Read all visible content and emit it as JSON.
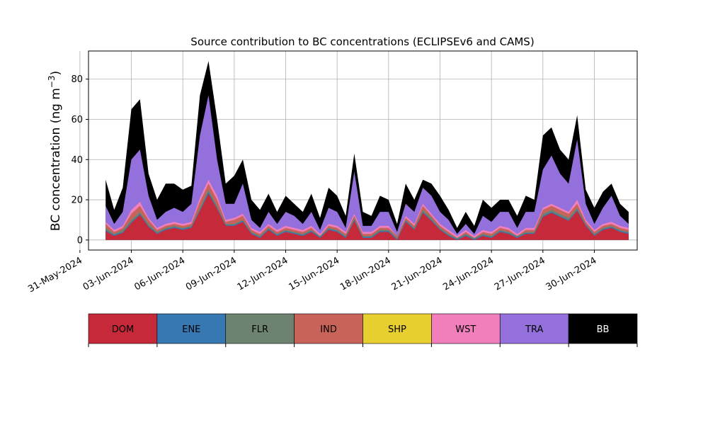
{
  "chart_data": {
    "type": "area",
    "stacked": true,
    "title": "Source contribution to BC concentrations (ECLIPSEv6 and CAMS)",
    "ylabel": "BC concentration (ng m",
    "ylabel_sup": "−3",
    "ylabel_close": ")",
    "xlabel": "",
    "grid": true,
    "xlim": [
      "2024-05-31T12:00",
      "2024-07-02T12:00"
    ],
    "ylim": [
      -5,
      94
    ],
    "y_ticks": [
      0,
      20,
      40,
      60,
      80
    ],
    "x_ticks": [
      {
        "date": "2024-05-31",
        "label": "31-May-2024"
      },
      {
        "date": "2024-06-03",
        "label": "03-Jun-2024"
      },
      {
        "date": "2024-06-06",
        "label": "06-Jun-2024"
      },
      {
        "date": "2024-06-09",
        "label": "09-Jun-2024"
      },
      {
        "date": "2024-06-12",
        "label": "12-Jun-2024"
      },
      {
        "date": "2024-06-15",
        "label": "15-Jun-2024"
      },
      {
        "date": "2024-06-18",
        "label": "18-Jun-2024"
      },
      {
        "date": "2024-06-21",
        "label": "21-Jun-2024"
      },
      {
        "date": "2024-06-24",
        "label": "24-Jun-2024"
      },
      {
        "date": "2024-06-27",
        "label": "27-Jun-2024"
      },
      {
        "date": "2024-06-30",
        "label": "30-Jun-2024"
      }
    ],
    "legend_position": "below",
    "series": [
      {
        "name": "DOM",
        "color": "#c62a3a"
      },
      {
        "name": "ENE",
        "color": "#3778b2"
      },
      {
        "name": "FLR",
        "color": "#6e8270"
      },
      {
        "name": "IND",
        "color": "#c8635a"
      },
      {
        "name": "SHP",
        "color": "#e8cf30"
      },
      {
        "name": "WST",
        "color": "#f17fbc"
      },
      {
        "name": "TRA",
        "color": "#9370db"
      },
      {
        "name": "BB",
        "color": "#000000"
      }
    ],
    "time": [
      "2024-06-01T12:00",
      "2024-06-02T00:00",
      "2024-06-02T12:00",
      "2024-06-03T00:00",
      "2024-06-03T12:00",
      "2024-06-04T00:00",
      "2024-06-04T12:00",
      "2024-06-05T00:00",
      "2024-06-05T12:00",
      "2024-06-06T00:00",
      "2024-06-06T12:00",
      "2024-06-07T00:00",
      "2024-06-07T12:00",
      "2024-06-08T00:00",
      "2024-06-08T12:00",
      "2024-06-09T00:00",
      "2024-06-09T12:00",
      "2024-06-10T00:00",
      "2024-06-10T12:00",
      "2024-06-11T00:00",
      "2024-06-11T12:00",
      "2024-06-12T00:00",
      "2024-06-12T12:00",
      "2024-06-13T00:00",
      "2024-06-13T12:00",
      "2024-06-14T00:00",
      "2024-06-14T12:00",
      "2024-06-15T00:00",
      "2024-06-15T12:00",
      "2024-06-16T00:00",
      "2024-06-16T12:00",
      "2024-06-17T00:00",
      "2024-06-17T12:00",
      "2024-06-18T00:00",
      "2024-06-18T12:00",
      "2024-06-19T00:00",
      "2024-06-19T12:00",
      "2024-06-20T00:00",
      "2024-06-20T12:00",
      "2024-06-21T00:00",
      "2024-06-21T12:00",
      "2024-06-22T00:00",
      "2024-06-22T12:00",
      "2024-06-23T00:00",
      "2024-06-23T12:00",
      "2024-06-24T00:00",
      "2024-06-24T12:00",
      "2024-06-25T00:00",
      "2024-06-25T12:00",
      "2024-06-26T00:00",
      "2024-06-26T12:00",
      "2024-06-27T00:00",
      "2024-06-27T12:00",
      "2024-06-28T00:00",
      "2024-06-28T12:00",
      "2024-06-29T00:00",
      "2024-06-29T12:00",
      "2024-06-30T00:00",
      "2024-06-30T12:00",
      "2024-07-01T00:00",
      "2024-07-01T12:00",
      "2024-07-02T00:00"
    ],
    "total_BB": [
      30,
      15,
      26,
      65,
      70,
      33,
      20,
      28,
      28,
      25,
      27,
      72,
      89,
      60,
      28,
      32,
      40,
      20,
      15,
      23,
      14,
      22,
      18,
      14,
      23,
      11,
      26,
      22,
      12,
      43,
      14,
      12,
      22,
      20,
      8,
      28,
      20,
      30,
      28,
      22,
      15,
      6,
      14,
      7,
      20,
      16,
      20,
      20,
      12,
      22,
      20,
      52,
      56,
      45,
      40,
      62,
      25,
      16,
      24,
      28,
      18,
      14
    ],
    "top_TRA": [
      17,
      8,
      14,
      40,
      45,
      22,
      10,
      14,
      16,
      14,
      18,
      52,
      72,
      40,
      18,
      18,
      28,
      10,
      6,
      14,
      8,
      14,
      12,
      8,
      14,
      5,
      16,
      14,
      6,
      34,
      7,
      7,
      14,
      14,
      4,
      18,
      14,
      26,
      22,
      14,
      10,
      3,
      8,
      3,
      12,
      9,
      14,
      14,
      6,
      14,
      14,
      35,
      42,
      33,
      28,
      50,
      18,
      8,
      16,
      22,
      12,
      8
    ],
    "top_WST": [
      9,
      5,
      7,
      15,
      19,
      11,
      6,
      8,
      9,
      8,
      9,
      21,
      30,
      22,
      10,
      11,
      13,
      6,
      4,
      8,
      5,
      7,
      6,
      5,
      7,
      3,
      8,
      7,
      4,
      13,
      4,
      4,
      7,
      7,
      2,
      12,
      8,
      18,
      13,
      8,
      5,
      2,
      5,
      2,
      5,
      4,
      7,
      6,
      3,
      6,
      6,
      16,
      18,
      16,
      14,
      20,
      10,
      5,
      8,
      9,
      7,
      6
    ],
    "top_IND": [
      8,
      4,
      6,
      13,
      17,
      10,
      5,
      7,
      8,
      7,
      8,
      19,
      28,
      20,
      9,
      10,
      12,
      5,
      3,
      7,
      4,
      6,
      5,
      4,
      6,
      2,
      7,
      6,
      3,
      12,
      3,
      3,
      6,
      6,
      2,
      11,
      7,
      17,
      12,
      7,
      4,
      1,
      4,
      1,
      4,
      3,
      6,
      5,
      2,
      5,
      5,
      15,
      17,
      15,
      13,
      18,
      9,
      4,
      7,
      8,
      6,
      5
    ],
    "top_FLR": [
      6,
      3,
      5,
      10,
      14,
      8,
      4,
      6,
      7,
      6,
      7,
      16,
      25,
      17,
      8,
      8,
      10,
      4,
      2,
      6,
      3,
      5,
      4,
      3,
      5,
      2,
      6,
      5,
      2,
      11,
      2,
      2,
      5,
      5,
      1,
      10,
      6,
      15,
      11,
      6,
      3,
      1,
      3,
      1,
      3,
      2,
      5,
      4,
      2,
      4,
      4,
      13,
      15,
      13,
      11,
      16,
      8,
      3,
      6,
      7,
      5,
      4
    ],
    "top_ENE": [
      5,
      2.5,
      4,
      9,
      13,
      7,
      3.5,
      5.5,
      6.5,
      5.5,
      6.5,
      15,
      24,
      16,
      7.5,
      7.5,
      9.5,
      3.5,
      1.5,
      5.5,
      2.5,
      4.5,
      3.5,
      2.5,
      4.5,
      1.5,
      5.5,
      4.5,
      1.5,
      10,
      1.5,
      1.5,
      4.5,
      4.5,
      0.5,
      9.5,
      5.5,
      14,
      10,
      5.5,
      2.5,
      0.5,
      2.5,
      0.5,
      2.5,
      1.5,
      4.5,
      3.5,
      1.5,
      3.5,
      3.5,
      12,
      14,
      12,
      10,
      15,
      7.5,
      2.5,
      5.5,
      6.5,
      4.5,
      3.5
    ],
    "top_DOM": [
      4.5,
      2,
      3.5,
      8.5,
      12.5,
      6.5,
      3,
      5,
      6,
      5,
      6,
      14.5,
      23,
      15.5,
      7,
      7,
      9,
      3,
      1,
      5,
      2,
      4,
      3,
      2,
      4,
      1,
      5,
      4,
      1,
      9.5,
      1,
      1,
      4,
      4,
      0,
      9,
      5,
      13.5,
      9.5,
      5,
      2,
      0,
      2,
      0,
      2,
      1,
      4,
      3,
      1,
      3,
      3,
      11.5,
      13.5,
      11.5,
      9.5,
      14.5,
      7,
      2,
      5,
      6,
      4,
      3
    ]
  }
}
